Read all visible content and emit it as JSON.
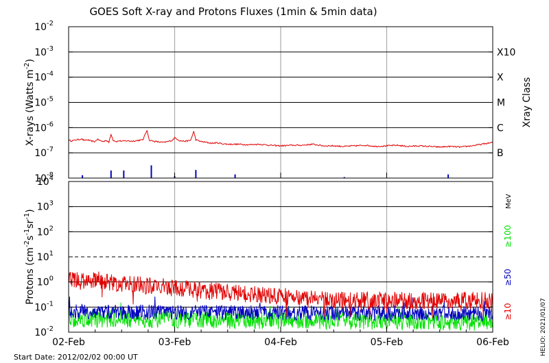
{
  "chart_data": [
    {
      "type": "line",
      "title": "GOES Soft X-ray and Protons Fluxes   (1min & 5min data)",
      "ylabel_parts": [
        "X-rays (Watts m",
        "-2",
        ")"
      ],
      "yscale": "log",
      "ylim": [
        1e-08,
        0.01
      ],
      "ytick_exponents": [
        -8,
        -7,
        -6,
        -5,
        -4,
        -3,
        -2
      ],
      "ytick_base": "10",
      "right_axis_label": "Xray Class",
      "class_labels": [
        {
          "exp": -3,
          "label": "X10"
        },
        {
          "exp": -4,
          "label": "X"
        },
        {
          "exp": -5,
          "label": "M"
        },
        {
          "exp": -6,
          "label": "C"
        },
        {
          "exp": -7,
          "label": "B"
        }
      ],
      "horizontal_lines": [
        1e-07,
        1e-06,
        1e-05,
        0.0001,
        0.001
      ],
      "series": [
        {
          "color": "#e00000",
          "x_days": [
            0.0,
            0.02,
            0.05,
            0.07,
            0.1,
            0.12,
            0.15,
            0.18,
            0.2,
            0.22,
            0.25,
            0.27,
            0.3,
            0.33,
            0.35,
            0.38,
            0.4,
            0.42,
            0.45,
            0.48,
            0.5,
            0.55,
            0.6,
            0.65,
            0.7,
            0.74,
            0.76,
            0.8,
            0.85,
            0.9,
            0.95,
            0.98,
            1.0,
            1.03,
            1.05,
            1.1,
            1.15,
            1.18,
            1.2,
            1.25,
            1.3,
            1.35,
            1.4,
            1.45,
            1.5,
            1.6,
            1.7,
            1.8,
            1.9,
            2.0,
            2.1,
            2.2,
            2.3,
            2.4,
            2.5,
            2.6,
            2.7,
            2.8,
            2.9,
            3.0,
            3.1,
            3.2,
            3.3,
            3.4,
            3.5,
            3.6,
            3.7,
            3.75,
            3.8,
            3.9,
            4.0
          ],
          "y": [
            3.2e-07,
            3e-07,
            3.1e-07,
            3.3e-07,
            3.4e-07,
            3.6e-07,
            3.1e-07,
            3.3e-07,
            3e-07,
            2.9e-07,
            2.8e-07,
            3.5e-07,
            3e-07,
            2.8e-07,
            3.2e-07,
            2.6e-07,
            5.6e-07,
            3.2e-07,
            2.8e-07,
            3e-07,
            2.9e-07,
            3e-07,
            2.9e-07,
            3.1e-07,
            3.3e-07,
            8e-07,
            3.2e-07,
            2.9e-07,
            2.7e-07,
            2.6e-07,
            2.9e-07,
            3.2e-07,
            4e-07,
            3.4e-07,
            3e-07,
            2.9e-07,
            3.1e-07,
            7e-07,
            3.3e-07,
            2.8e-07,
            2.6e-07,
            2.4e-07,
            2.5e-07,
            2.3e-07,
            2.2e-07,
            2.2e-07,
            2.1e-07,
            2.2e-07,
            2e-07,
            1.9e-07,
            2e-07,
            2e-07,
            2.2e-07,
            1.9e-07,
            1.9e-07,
            1.8e-07,
            1.9e-07,
            2e-07,
            1.8e-07,
            1.9e-07,
            2e-07,
            1.8e-07,
            1.9e-07,
            1.8e-07,
            1.7e-07,
            1.8e-07,
            1.7e-07,
            1.8e-07,
            1.9e-07,
            2.2e-07,
            2.6e-07
          ]
        },
        {
          "color": "#0000c0",
          "spikes": [
            {
              "x": 0.13,
              "y": 1.3e-08
            },
            {
              "x": 0.4,
              "y": 2e-08
            },
            {
              "x": 0.52,
              "y": 2e-08
            },
            {
              "x": 0.78,
              "y": 3.2e-08
            },
            {
              "x": 1.0,
              "y": 1.2e-08
            },
            {
              "x": 1.2,
              "y": 2.1e-08
            },
            {
              "x": 1.57,
              "y": 1.4e-08
            },
            {
              "x": 2.6,
              "y": 1.1e-08
            },
            {
              "x": 3.58,
              "y": 1.4e-08
            }
          ]
        }
      ]
    },
    {
      "type": "line",
      "ylabel_parts": [
        "Protons (cm",
        "-2",
        "s",
        "-1",
        "sr",
        "-1",
        ")"
      ],
      "yscale": "log",
      "ylim": [
        0.01,
        10000
      ],
      "ytick_exponents": [
        -2,
        -1,
        0,
        1,
        2,
        3,
        4
      ],
      "ytick_base": "10",
      "right_unit": "MeV",
      "horizontal_lines": [
        0.1,
        1,
        100,
        1000
      ],
      "dashed_lines": [
        10
      ],
      "series": [
        {
          "name": "≥10",
          "color": "#e00000",
          "level_start": 1.2,
          "level_end": 0.18,
          "spread": 0.35
        },
        {
          "name": "≥50",
          "color": "#0000c0",
          "level_start": 0.065,
          "level_end": 0.055,
          "spread": 0.3
        },
        {
          "name": "≥100",
          "color": "#00e000",
          "level_start": 0.035,
          "level_end": 0.025,
          "spread": 0.35
        }
      ]
    }
  ],
  "x_axis": {
    "range_days": [
      0,
      4
    ],
    "tick_labels": [
      "02-Feb",
      "03-Feb",
      "04-Feb",
      "05-Feb",
      "06-Feb"
    ],
    "gridline_days": [
      1,
      2,
      3
    ]
  },
  "footer": {
    "start_date": "Start Date: 2012/02/02 00:00 UT",
    "credit": "HELIO: 2021/01/07"
  },
  "colors": {
    "frame": "#000000",
    "grid": "#aaaaaa",
    "xray": "#e00000",
    "proton_low": "#0000c0",
    "proton_high": "#00e000"
  }
}
